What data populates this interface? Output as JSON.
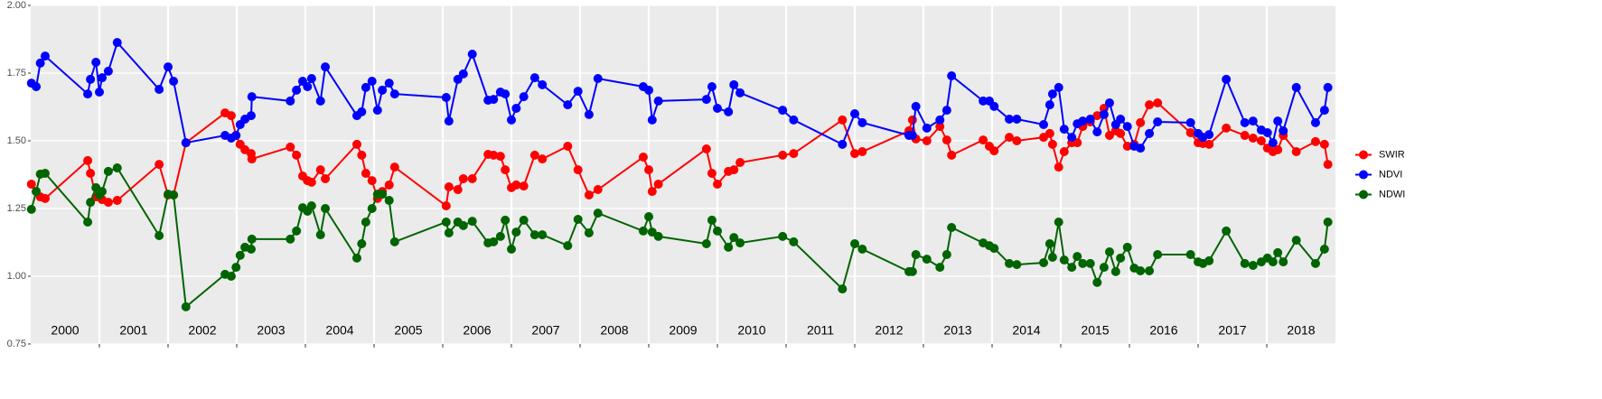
{
  "chart_data": {
    "type": "line",
    "x": [
      2000.01,
      2000.08,
      2000.14,
      2000.21,
      2000.83,
      2000.87,
      2000.95,
      2001.0,
      2001.04,
      2001.13,
      2001.26,
      2001.87,
      2002.0,
      2002.08,
      2002.26,
      2002.83,
      2002.92,
      2002.99,
      2003.05,
      2003.12,
      2003.21,
      2003.22,
      2003.78,
      2003.87,
      2003.96,
      2004.03,
      2004.09,
      2004.22,
      2004.29,
      2004.75,
      2004.82,
      2004.88,
      2004.97,
      2005.05,
      2005.12,
      2005.22,
      2005.3,
      2006.05,
      2006.09,
      2006.22,
      2006.3,
      2006.43,
      2006.66,
      2006.74,
      2006.84,
      2006.91,
      2007.0,
      2007.07,
      2007.18,
      2007.34,
      2007.45,
      2007.82,
      2007.97,
      2008.13,
      2008.26,
      2008.92,
      2009.0,
      2009.05,
      2009.14,
      2009.84,
      2009.92,
      2010.0,
      2010.16,
      2010.24,
      2010.33,
      2010.95,
      2011.11,
      2011.82,
      2012.0,
      2012.11,
      2012.79,
      2012.84,
      2012.89,
      2013.05,
      2013.24,
      2013.34,
      2013.41,
      2013.87,
      2013.96,
      2014.03,
      2014.25,
      2014.36,
      2014.75,
      2014.84,
      2014.88,
      2014.97,
      2015.05,
      2015.16,
      2015.24,
      2015.32,
      2015.43,
      2015.53,
      2015.63,
      2015.71,
      2015.8,
      2015.87,
      2015.97,
      2016.07,
      2016.16,
      2016.29,
      2016.41,
      2016.89,
      2017.0,
      2017.07,
      2017.16,
      2017.41,
      2017.68,
      2017.8,
      2017.92,
      2018.01,
      2018.09,
      2018.16,
      2018.24,
      2018.43,
      2018.71,
      2018.84,
      2018.89
    ],
    "series": [
      {
        "name": "SWIR",
        "color": "#ff0000",
        "values": [
          1.34,
          1.313,
          1.293,
          1.287,
          1.427,
          1.38,
          1.293,
          1.293,
          1.283,
          1.273,
          1.28,
          1.413,
          1.3,
          1.3,
          1.493,
          1.603,
          1.593,
          1.52,
          1.487,
          1.467,
          1.453,
          1.433,
          1.477,
          1.447,
          1.37,
          1.353,
          1.347,
          1.393,
          1.36,
          1.487,
          1.447,
          1.38,
          1.353,
          1.287,
          1.313,
          1.337,
          1.403,
          1.26,
          1.33,
          1.32,
          1.36,
          1.36,
          1.45,
          1.447,
          1.443,
          1.393,
          1.327,
          1.337,
          1.333,
          1.447,
          1.433,
          1.48,
          1.393,
          1.3,
          1.32,
          1.44,
          1.393,
          1.313,
          1.34,
          1.47,
          1.38,
          1.34,
          1.387,
          1.393,
          1.42,
          1.447,
          1.453,
          1.577,
          1.453,
          1.46,
          1.537,
          1.577,
          1.507,
          1.5,
          1.553,
          1.503,
          1.447,
          1.503,
          1.48,
          1.463,
          1.513,
          1.5,
          1.513,
          1.527,
          1.487,
          1.403,
          1.46,
          1.493,
          1.493,
          1.553,
          1.57,
          1.593,
          1.62,
          1.52,
          1.537,
          1.527,
          1.48,
          1.487,
          1.567,
          1.633,
          1.64,
          1.53,
          1.493,
          1.49,
          1.487,
          1.547,
          1.52,
          1.51,
          1.5,
          1.473,
          1.46,
          1.467,
          1.52,
          1.46,
          1.497,
          1.487,
          1.413
        ]
      },
      {
        "name": "NDVI",
        "color": "#0000ff",
        "values": [
          1.713,
          1.7,
          1.787,
          1.813,
          1.673,
          1.727,
          1.79,
          1.68,
          1.733,
          1.757,
          1.863,
          1.69,
          1.773,
          1.72,
          1.493,
          1.52,
          1.51,
          1.52,
          1.56,
          1.58,
          1.593,
          1.663,
          1.647,
          1.687,
          1.72,
          1.7,
          1.73,
          1.647,
          1.773,
          1.593,
          1.607,
          1.697,
          1.72,
          1.613,
          1.687,
          1.713,
          1.673,
          1.66,
          1.573,
          1.727,
          1.747,
          1.82,
          1.65,
          1.653,
          1.68,
          1.673,
          1.577,
          1.62,
          1.663,
          1.733,
          1.707,
          1.633,
          1.683,
          1.597,
          1.73,
          1.7,
          1.687,
          1.577,
          1.647,
          1.653,
          1.7,
          1.62,
          1.607,
          1.707,
          1.677,
          1.613,
          1.577,
          1.487,
          1.6,
          1.567,
          1.52,
          1.52,
          1.627,
          1.547,
          1.577,
          1.613,
          1.74,
          1.647,
          1.647,
          1.627,
          1.58,
          1.58,
          1.56,
          1.633,
          1.673,
          1.697,
          1.543,
          1.513,
          1.563,
          1.573,
          1.58,
          1.533,
          1.597,
          1.64,
          1.56,
          1.58,
          1.553,
          1.48,
          1.473,
          1.527,
          1.57,
          1.567,
          1.527,
          1.513,
          1.523,
          1.727,
          1.567,
          1.573,
          1.54,
          1.53,
          1.493,
          1.573,
          1.537,
          1.697,
          1.567,
          1.613,
          1.697
        ]
      },
      {
        "name": "NDWI",
        "color": "#006400",
        "values": [
          1.247,
          1.313,
          1.377,
          1.38,
          1.2,
          1.273,
          1.327,
          1.3,
          1.313,
          1.387,
          1.4,
          1.15,
          1.303,
          1.3,
          0.887,
          1.007,
          1.0,
          1.033,
          1.077,
          1.107,
          1.1,
          1.137,
          1.137,
          1.167,
          1.253,
          1.24,
          1.26,
          1.153,
          1.25,
          1.067,
          1.12,
          1.2,
          1.25,
          1.303,
          1.303,
          1.28,
          1.127,
          1.2,
          1.16,
          1.2,
          1.187,
          1.203,
          1.123,
          1.127,
          1.147,
          1.207,
          1.1,
          1.163,
          1.207,
          1.153,
          1.153,
          1.113,
          1.21,
          1.16,
          1.233,
          1.167,
          1.22,
          1.163,
          1.147,
          1.12,
          1.207,
          1.167,
          1.107,
          1.143,
          1.123,
          1.147,
          1.127,
          0.953,
          1.12,
          1.1,
          1.017,
          1.017,
          1.08,
          1.063,
          1.033,
          1.08,
          1.18,
          1.123,
          1.113,
          1.103,
          1.047,
          1.043,
          1.05,
          1.12,
          1.07,
          1.2,
          1.06,
          1.033,
          1.073,
          1.047,
          1.047,
          0.977,
          1.033,
          1.09,
          1.017,
          1.067,
          1.107,
          1.03,
          1.02,
          1.02,
          1.08,
          1.08,
          1.053,
          1.047,
          1.057,
          1.167,
          1.047,
          1.04,
          1.053,
          1.067,
          1.053,
          1.087,
          1.053,
          1.133,
          1.047,
          1.1,
          1.2
        ]
      }
    ],
    "x_labels": [
      "2000",
      "2001",
      "2002",
      "2003",
      "2004",
      "2005",
      "2006",
      "2007",
      "2008",
      "2009",
      "2010",
      "2011",
      "2012",
      "2013",
      "2014",
      "2015",
      "2016",
      "2017",
      "2018"
    ],
    "xlim": [
      2000,
      2019
    ],
    "xticks": [
      2001,
      2002,
      2003,
      2004,
      2005,
      2006,
      2007,
      2008,
      2009,
      2010,
      2011,
      2012,
      2013,
      2014,
      2015,
      2016,
      2017,
      2018
    ],
    "ylim": [
      0.75,
      2.0
    ],
    "yticks": [
      0.75,
      {
        "value": 1.0,
        "label": "1.00"
      },
      1.25,
      {
        "value": 1.5,
        "label": "1.50"
      },
      1.75,
      {
        "value": 2.0,
        "label": "2.00"
      }
    ],
    "grid": true,
    "legend": "right"
  }
}
